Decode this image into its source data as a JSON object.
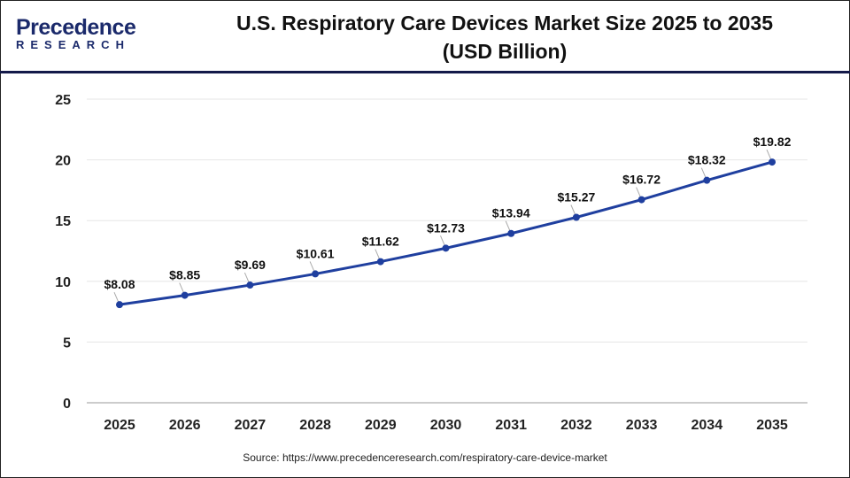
{
  "logo": {
    "top": "Precedence",
    "bottom": "RESEARCH"
  },
  "title_line1": "U.S. Respiratory Care Devices Market Size 2025 to 2035",
  "title_line2": "(USD Billion)",
  "source": "Source: https://www.precedenceresearch.com/respiratory-care-device-market",
  "colors": {
    "line": "#1f3f9f",
    "header_rule": "#141a4a"
  },
  "chart_data": {
    "type": "line",
    "categories": [
      "2025",
      "2026",
      "2027",
      "2028",
      "2029",
      "2030",
      "2031",
      "2032",
      "2033",
      "2034",
      "2035"
    ],
    "values": [
      8.08,
      8.85,
      9.69,
      10.61,
      11.62,
      12.73,
      13.94,
      15.27,
      16.72,
      18.32,
      19.82
    ],
    "labels": [
      "$8.08",
      "$8.85",
      "$9.69",
      "$10.61",
      "$11.62",
      "$12.73",
      "$13.94",
      "$15.27",
      "$16.72",
      "$18.32",
      "$19.82"
    ],
    "ylim": [
      0,
      25
    ],
    "yticks": [
      "0",
      "5",
      "10",
      "15",
      "20",
      "25"
    ],
    "grid": true,
    "xlabel": "",
    "ylabel": ""
  }
}
